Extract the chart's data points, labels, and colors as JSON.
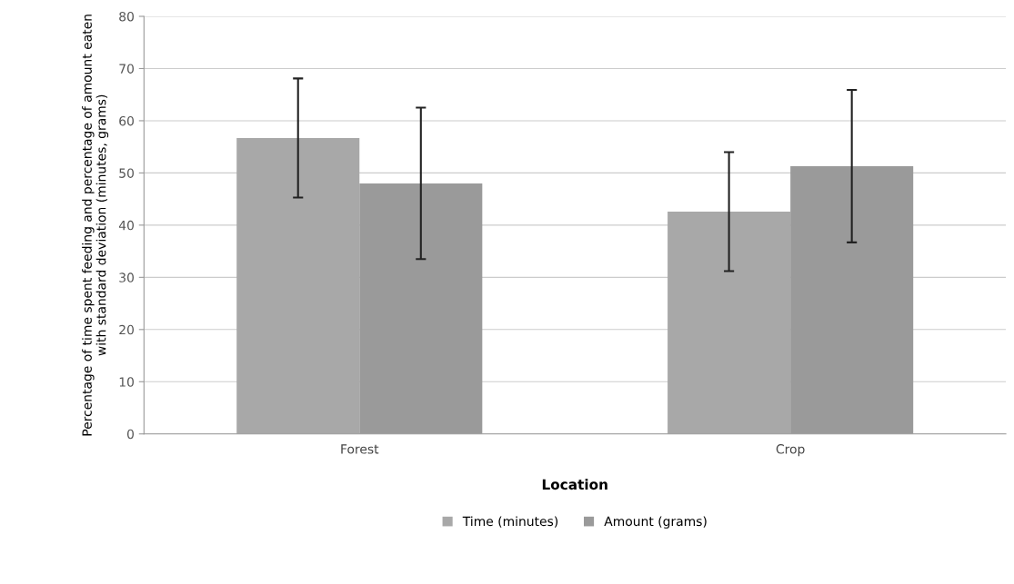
{
  "chart_data": {
    "type": "bar",
    "xlabel": "Location",
    "ylabel": "Percentage of time spent feeding and percentage of amount eaten with standard deviation (minutes, grams)",
    "categories": [
      "Forest",
      "Crop"
    ],
    "series": [
      {
        "name": "Time (minutes)",
        "color": "#a8a8a8",
        "values": [
          56.7,
          42.6
        ],
        "errors": [
          11.4,
          11.4
        ]
      },
      {
        "name": "Amount (grams)",
        "color": "#9a9a9a",
        "values": [
          48.0,
          51.3
        ],
        "errors": [
          14.5,
          14.6
        ]
      }
    ],
    "ylim": [
      0,
      80
    ],
    "yticks": [
      0,
      10,
      20,
      30,
      40,
      50,
      60,
      70,
      80
    ],
    "grid": "y",
    "legend": "bottom"
  }
}
